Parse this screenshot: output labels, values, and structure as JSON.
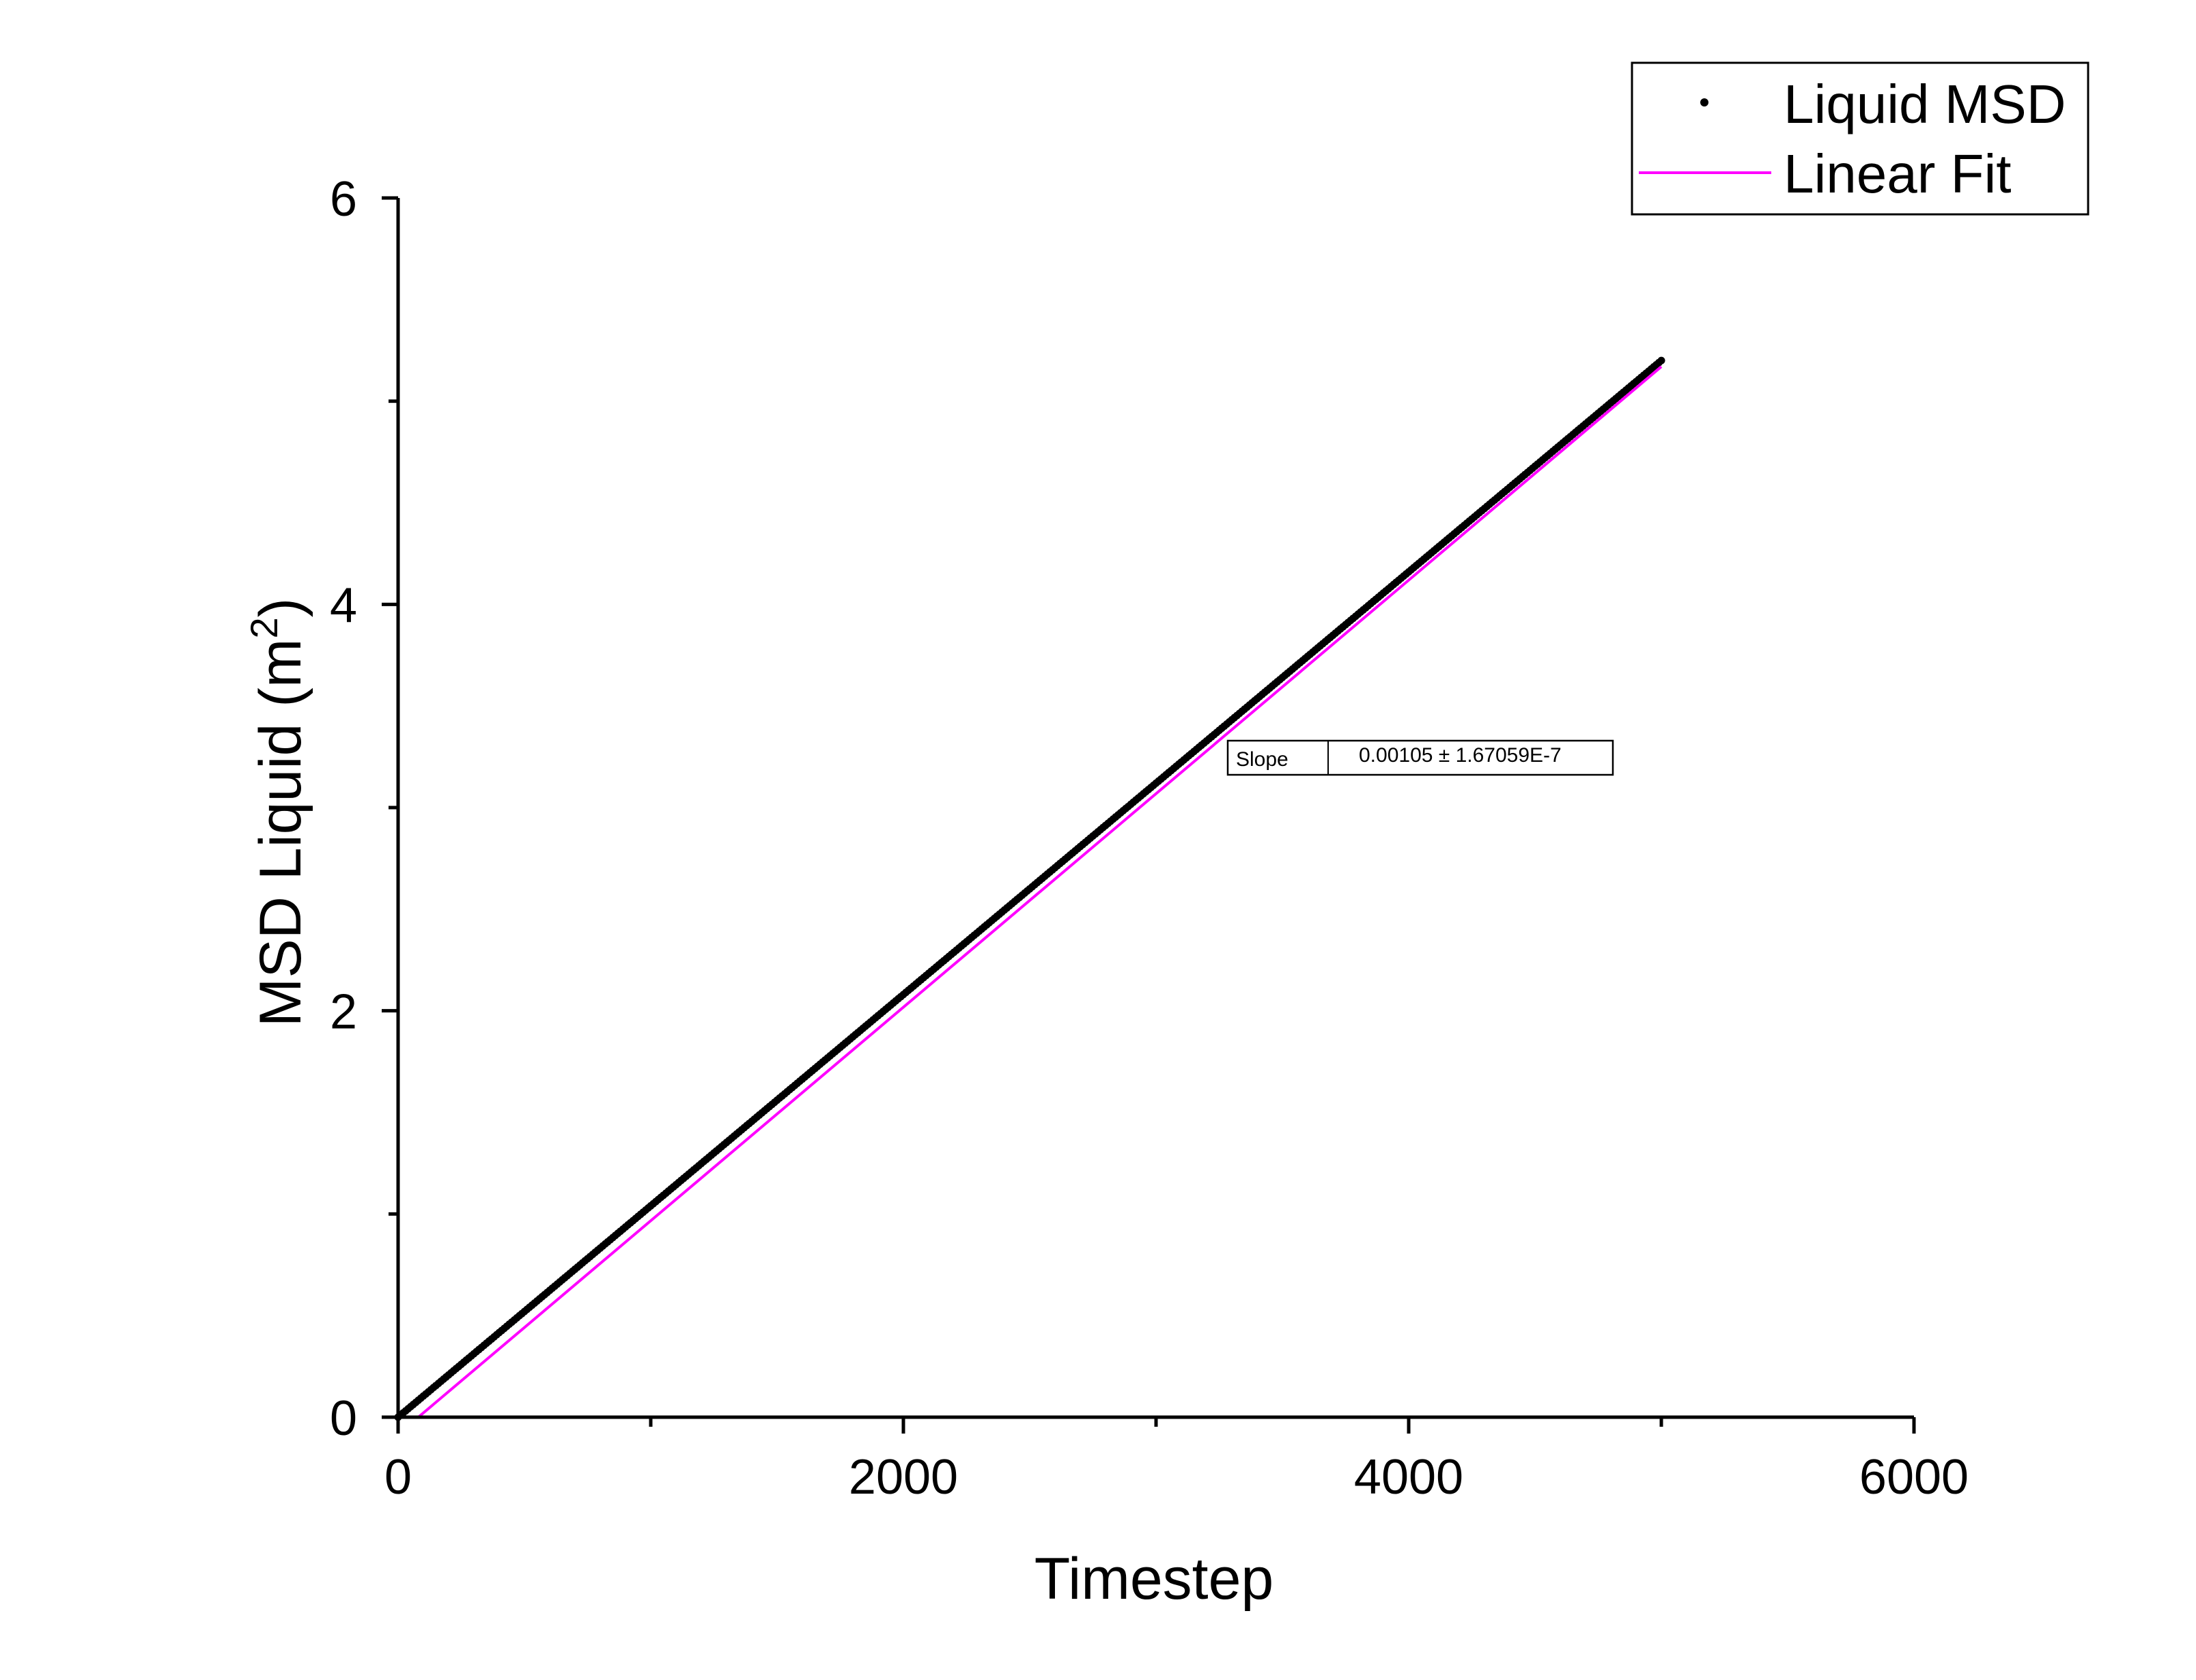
{
  "chart_data": {
    "type": "scatter",
    "xlabel": "Timestep",
    "ylabel_main": "MSD Liquid (m",
    "ylabel_sup": "2",
    "ylabel_close": ")",
    "xlim": [
      0,
      6000
    ],
    "ylim": [
      0,
      6
    ],
    "x_ticks": [
      0,
      2000,
      4000,
      6000
    ],
    "x_tick_labels": [
      "0",
      "2000",
      "4000",
      "6000"
    ],
    "x_minor_ticks": [
      1000,
      3000,
      5000
    ],
    "y_ticks": [
      0,
      2,
      4,
      6
    ],
    "y_tick_labels": [
      "0",
      "2",
      "4",
      "6"
    ],
    "y_minor_ticks": [
      1,
      3,
      5
    ],
    "grid": false,
    "legend_position": "top-right",
    "series": [
      {
        "name": "Liquid MSD",
        "kind": "points",
        "color": "#000000",
        "x_start": 0,
        "x_end": 5000,
        "y_start": 0,
        "y_end": 5.2
      },
      {
        "name": "Linear Fit",
        "kind": "line",
        "color": "#ff00ff",
        "x": [
          80,
          5000
        ],
        "y": [
          0,
          5.17
        ]
      }
    ],
    "fit_table": {
      "label": "Slope",
      "value": "0.00105 ± 1.67059E-7"
    }
  }
}
